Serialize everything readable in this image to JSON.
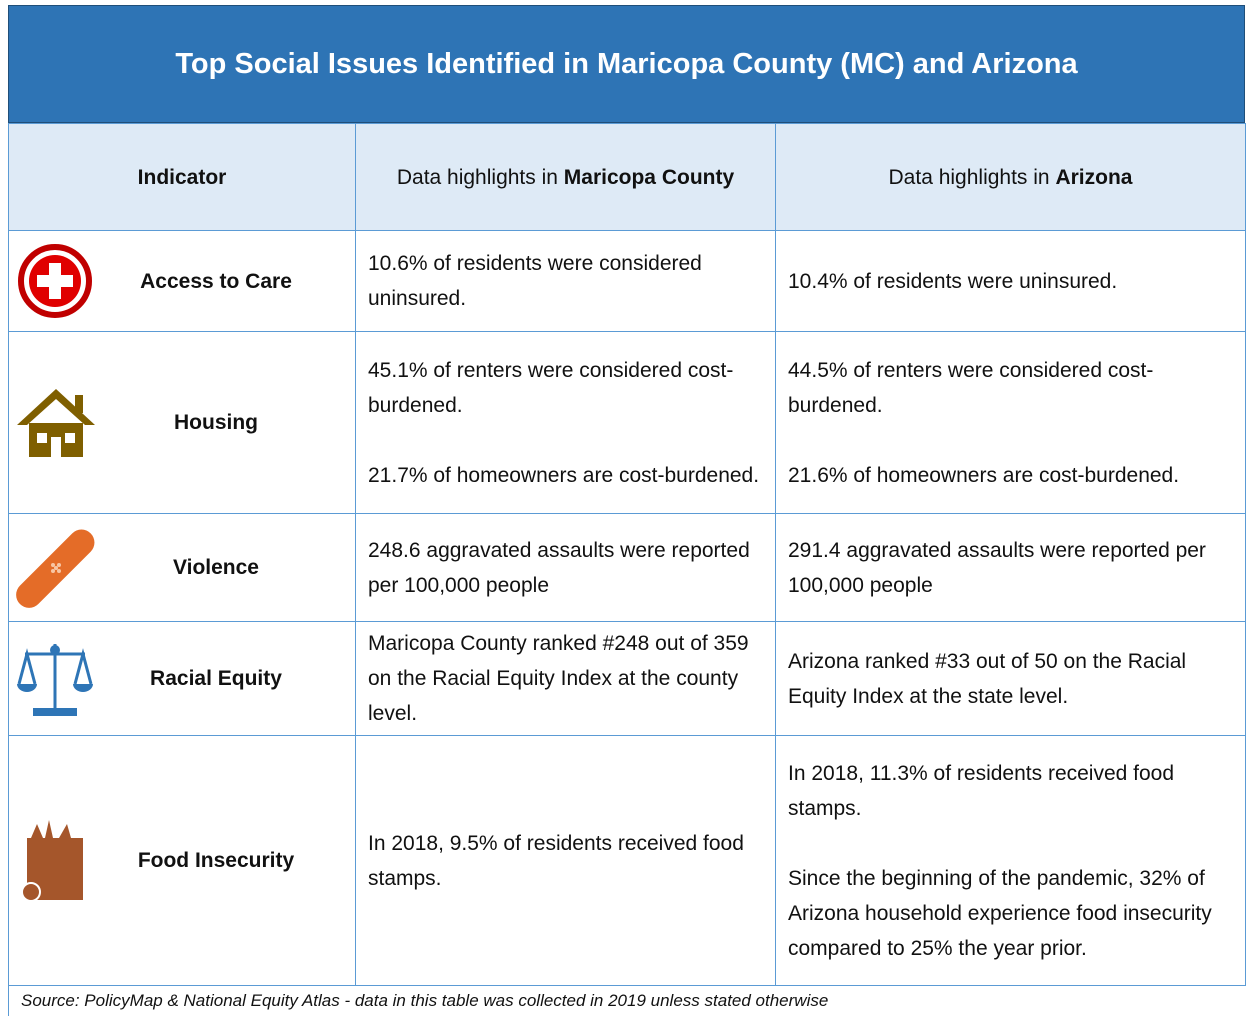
{
  "header": {
    "title": "Top Social Issues Identified in Maricopa County (MC) and Arizona"
  },
  "table": {
    "columns": {
      "indicator": "Indicator",
      "maricopa": {
        "prefix": "Data highlights in",
        "bold": "Maricopa County"
      },
      "arizona": {
        "prefix": "Data highlights in",
        "bold": "Arizona"
      }
    },
    "rows": [
      {
        "indicator": "Access to Care",
        "maricopa": [
          "10.6% of residents were considered uninsured."
        ],
        "arizona": [
          "10.4% of residents were uninsured."
        ]
      },
      {
        "indicator": "Housing",
        "maricopa": [
          "45.1% of renters were considered cost-burdened.",
          "21.7% of homeowners are cost-burdened."
        ],
        "arizona": [
          "44.5% of renters were considered cost-burdened.",
          "21.6% of homeowners are cost-burdened."
        ]
      },
      {
        "indicator": "Violence",
        "maricopa": [
          "248.6 aggravated assaults were reported per 100,000 people"
        ],
        "arizona": [
          "291.4 aggravated assaults were reported per 100,000 people"
        ]
      },
      {
        "indicator": "Racial Equity",
        "maricopa": [
          "Maricopa County ranked #248 out of 359 on the Racial Equity Index at the county level."
        ],
        "arizona": [
          "Arizona ranked #33 out of 50 on the Racial Equity Index at the state level."
        ]
      },
      {
        "indicator": "Food Insecurity",
        "maricopa": [
          "In 2018, 9.5% of residents received food stamps."
        ],
        "arizona": [
          "In 2018, 11.3% of residents received food stamps.",
          "Since the beginning of the pandemic, 32% of Arizona household experience food insecurity compared to 25% the year prior."
        ]
      }
    ],
    "source": "Source: PolicyMap & National Equity Atlas - data in this table was collected in 2019 unless stated otherwise"
  }
}
